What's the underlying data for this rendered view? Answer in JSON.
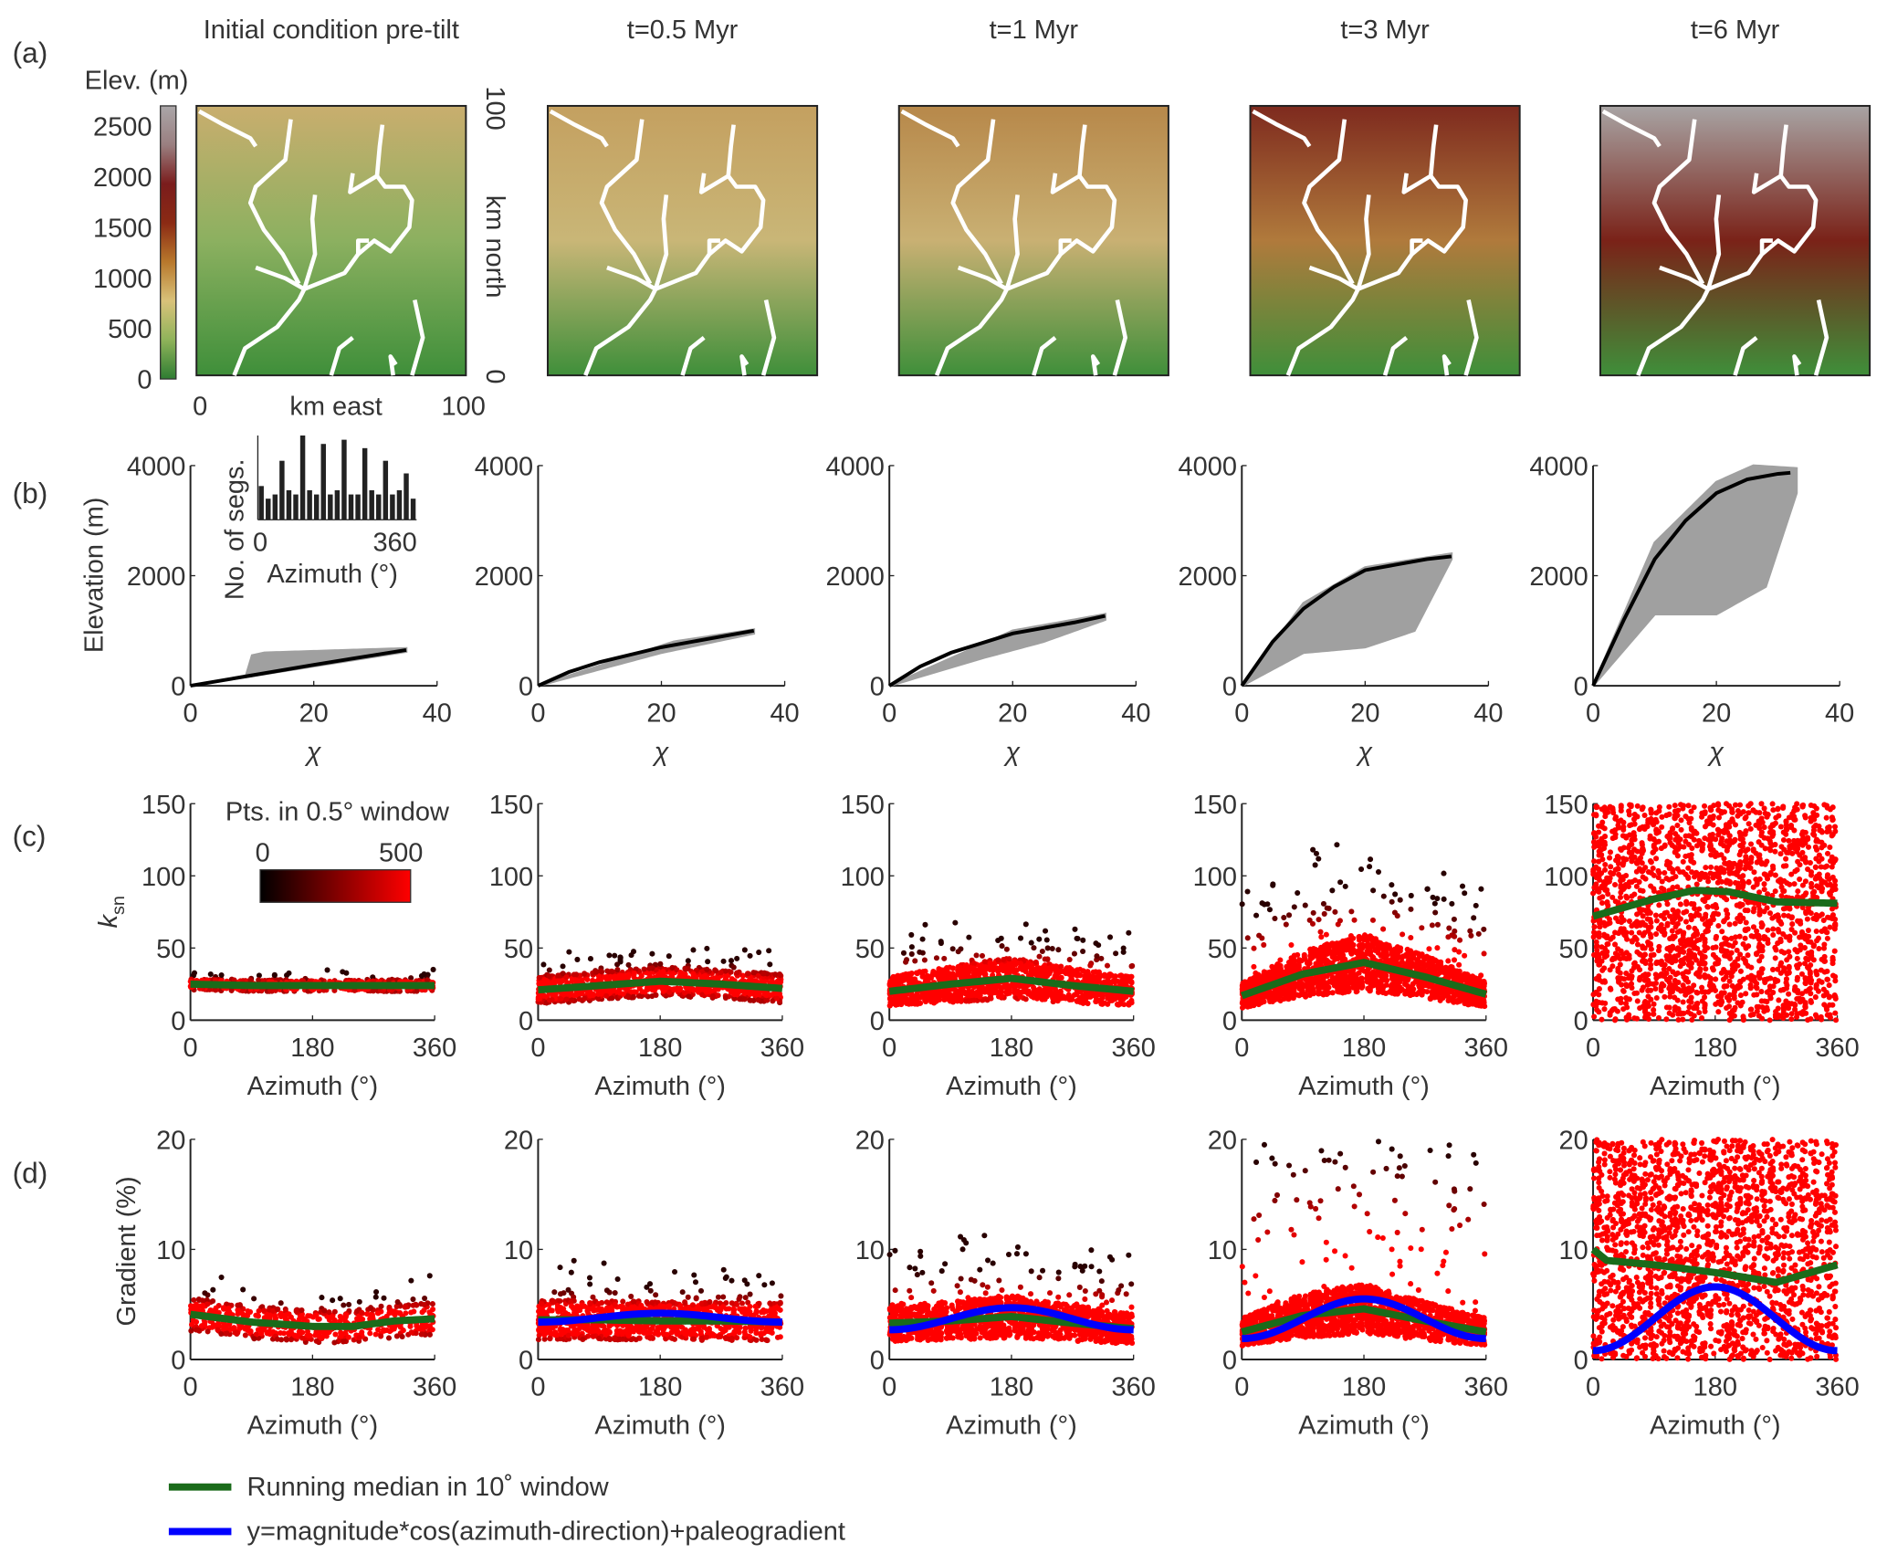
{
  "panel_labels": [
    "(a)",
    "(b)",
    "(c)",
    "(d)"
  ],
  "columns": [
    {
      "title": "Initial condition pre-tilt",
      "map_colors": [
        "#c9ae6e",
        "#8cb060",
        "#3f8f3a"
      ]
    },
    {
      "title": "t=0.5 Myr",
      "map_colors": [
        "#c4a060",
        "#c9b677",
        "#3f8f3a"
      ]
    },
    {
      "title": "t=1 Myr",
      "map_colors": [
        "#b7884a",
        "#c9b073",
        "#3f8f3a"
      ]
    },
    {
      "title": "t=3 Myr",
      "map_colors": [
        "#7e2a1e",
        "#b07a3c",
        "#3f8f3a"
      ]
    },
    {
      "title": "t=6 Myr",
      "map_colors": [
        "#a8a4a4",
        "#7a2218",
        "#3f8f3a"
      ]
    }
  ],
  "row_a": {
    "colorbar_title": "Elev. (m)",
    "colorbar_ticks": [
      "0",
      "500",
      "1000",
      "1500",
      "2000",
      "2500"
    ],
    "colorbar_range": [
      0,
      2700
    ],
    "colorbar_colors": [
      "#2e7d32",
      "#8fb35a",
      "#d9c27a",
      "#b8782c",
      "#8b2a14",
      "#7a1c1c",
      "#9a7f80",
      "#aaa6a8"
    ],
    "x_label": "km east",
    "x_ticks": [
      "0",
      "100"
    ],
    "y_label": "km north",
    "y_ticks": [
      "0",
      "100"
    ],
    "river_color": "#ffffff"
  },
  "row_b": {
    "y_label": "Elevation (m)",
    "x_label": "χ",
    "x_ticks": [
      "0",
      "20",
      "40"
    ],
    "y_ticks": [
      "0",
      "2000",
      "4000"
    ],
    "inset": {
      "y_label": "No. of segs.",
      "x_label": "Azimuth (°)",
      "x_ticks": [
        "0",
        "360"
      ]
    }
  },
  "row_c": {
    "y_label": "k",
    "y_label_sub": "sn",
    "x_label": "Azimuth (°)",
    "x_ticks": [
      "0",
      "180",
      "360"
    ],
    "y_ticks": [
      "0",
      "50",
      "100",
      "150"
    ],
    "density_colorbar": {
      "title": "Pts. in 0.5° window",
      "ticks": [
        "0",
        "500"
      ],
      "colors": [
        "#000000",
        "#ff0000"
      ]
    }
  },
  "row_d": {
    "y_label": "Gradient (%)",
    "x_label": "Azimuth (°)",
    "x_ticks": [
      "0",
      "180",
      "360"
    ],
    "y_ticks": [
      "0",
      "10",
      "20"
    ]
  },
  "legend": [
    {
      "label": "Running median in 10˚ window",
      "color": "#1a6b1a"
    },
    {
      "label": "y=magnitude*cos(azimuth-direction)+paleogradient",
      "color": "#0000ff"
    }
  ],
  "chart_data": [
    {
      "type": "line",
      "panel": "b",
      "xlabel": "χ",
      "ylabel": "Elevation (m)",
      "xlim": [
        0,
        40
      ],
      "ylim": [
        0,
        4000
      ],
      "series": [
        {
          "column": 0,
          "median": [
            [
              0,
              0
            ],
            [
              10,
              190
            ],
            [
              20,
              380
            ],
            [
              30,
              560
            ],
            [
              35,
              650
            ]
          ],
          "scatter_lower": [
            [
              0,
              0
            ],
            [
              35,
              620
            ]
          ],
          "scatter_upper": [
            [
              0,
              0
            ],
            [
              9,
              180
            ],
            [
              10,
              550
            ],
            [
              12,
              600
            ],
            [
              35,
              680
            ]
          ]
        },
        {
          "column": 1,
          "median": [
            [
              0,
              0
            ],
            [
              5,
              250
            ],
            [
              10,
              430
            ],
            [
              20,
              700
            ],
            [
              30,
              900
            ],
            [
              35,
              1000
            ]
          ],
          "scatter_lower": [
            [
              0,
              0
            ],
            [
              20,
              600
            ],
            [
              35,
              950
            ]
          ],
          "scatter_upper": [
            [
              0,
              0
            ],
            [
              22,
              800
            ],
            [
              35,
              1020
            ]
          ]
        },
        {
          "column": 2,
          "median": [
            [
              0,
              0
            ],
            [
              5,
              350
            ],
            [
              10,
              600
            ],
            [
              20,
              950
            ],
            [
              25,
              1050
            ],
            [
              30,
              1150
            ],
            [
              35,
              1270
            ]
          ],
          "scatter_lower": [
            [
              0,
              0
            ],
            [
              15,
              500
            ],
            [
              25,
              800
            ],
            [
              35,
              1200
            ]
          ],
          "scatter_upper": [
            [
              0,
              0
            ],
            [
              20,
              1000
            ],
            [
              35,
              1300
            ]
          ]
        },
        {
          "column": 3,
          "median": [
            [
              0,
              0
            ],
            [
              5,
              800
            ],
            [
              10,
              1400
            ],
            [
              15,
              1800
            ],
            [
              20,
              2100
            ],
            [
              25,
              2200
            ],
            [
              30,
              2300
            ],
            [
              34,
              2350
            ]
          ],
          "scatter_lower": [
            [
              0,
              0
            ],
            [
              10,
              600
            ],
            [
              20,
              700
            ],
            [
              28,
              1000
            ],
            [
              34,
              2300
            ]
          ],
          "scatter_upper": [
            [
              0,
              0
            ],
            [
              10,
              1500
            ],
            [
              20,
              2150
            ],
            [
              34,
              2400
            ]
          ]
        },
        {
          "column": 4,
          "median": [
            [
              0,
              0
            ],
            [
              5,
              1200
            ],
            [
              10,
              2300
            ],
            [
              15,
              3000
            ],
            [
              20,
              3500
            ],
            [
              25,
              3750
            ],
            [
              30,
              3850
            ],
            [
              32,
              3870
            ]
          ],
          "scatter_lower": [
            [
              0,
              0
            ],
            [
              10,
              1300
            ],
            [
              20,
              1300
            ],
            [
              28,
              1800
            ],
            [
              33,
              3500
            ]
          ],
          "scatter_upper": [
            [
              0,
              0
            ],
            [
              10,
              2600
            ],
            [
              20,
              3700
            ],
            [
              26,
              4000
            ],
            [
              33,
              3950
            ]
          ]
        }
      ]
    },
    {
      "type": "bar",
      "panel": "b-inset",
      "xlabel": "Azimuth (°)",
      "ylabel": "No. of segs.",
      "xlim": [
        0,
        360
      ],
      "values": [
        0.4,
        0.25,
        0.3,
        0.7,
        0.35,
        0.3,
        1.0,
        0.35,
        0.3,
        0.9,
        0.3,
        0.35,
        0.95,
        0.3,
        0.3,
        0.85,
        0.35,
        0.3,
        0.7,
        0.3,
        0.35,
        0.55,
        0.25
      ]
    },
    {
      "type": "scatter",
      "panel": "c",
      "xlabel": "Azimuth (°)",
      "ylabel": "ksn",
      "xlim": [
        0,
        360
      ],
      "ylim": [
        0,
        150
      ],
      "series": [
        {
          "column": 0,
          "running_median": [
            [
              0,
              25
            ],
            [
              90,
              24
            ],
            [
              180,
              24
            ],
            [
              270,
              24
            ],
            [
              360,
              24
            ]
          ],
          "spread": 8
        },
        {
          "column": 1,
          "running_median": [
            [
              0,
              21
            ],
            [
              90,
              24
            ],
            [
              180,
              27
            ],
            [
              270,
              25
            ],
            [
              360,
              22
            ]
          ],
          "spread": 20
        },
        {
          "column": 2,
          "running_median": [
            [
              0,
              20
            ],
            [
              90,
              25
            ],
            [
              180,
              29
            ],
            [
              270,
              24
            ],
            [
              360,
              20
            ]
          ],
          "spread": 35
        },
        {
          "column": 3,
          "running_median": [
            [
              0,
              17
            ],
            [
              90,
              32
            ],
            [
              180,
              40
            ],
            [
              270,
              30
            ],
            [
              360,
              18
            ]
          ],
          "spread": 70
        },
        {
          "column": 4,
          "running_median": [
            [
              0,
              72
            ],
            [
              90,
              84
            ],
            [
              150,
              90
            ],
            [
              200,
              89
            ],
            [
              270,
              82
            ],
            [
              360,
              81
            ]
          ],
          "spread": 150
        }
      ]
    },
    {
      "type": "scatter",
      "panel": "d",
      "xlabel": "Azimuth (°)",
      "ylabel": "Gradient (%)",
      "xlim": [
        0,
        360
      ],
      "ylim": [
        0,
        20
      ],
      "series": [
        {
          "column": 0,
          "running_median": [
            [
              0,
              4.1
            ],
            [
              90,
              3.4
            ],
            [
              180,
              3.0
            ],
            [
              240,
              3.0
            ],
            [
              300,
              3.5
            ],
            [
              360,
              3.7
            ]
          ],
          "spread": 3
        },
        {
          "column": 1,
          "running_median": [
            [
              0,
              3.6
            ],
            [
              90,
              3.6
            ],
            [
              180,
              3.5
            ],
            [
              270,
              3.5
            ],
            [
              360,
              3.4
            ]
          ],
          "cos_fit": {
            "magnitude": 0.4,
            "direction": 180,
            "paleogradient": 3.8
          },
          "spread": 4
        },
        {
          "column": 2,
          "running_median": [
            [
              0,
              3.3
            ],
            [
              90,
              3.5
            ],
            [
              180,
              3.9
            ],
            [
              270,
              3.3
            ],
            [
              360,
              2.8
            ]
          ],
          "cos_fit": {
            "magnitude": 1.0,
            "direction": 180,
            "paleogradient": 3.7
          },
          "spread": 6
        },
        {
          "column": 3,
          "running_median": [
            [
              0,
              2.5
            ],
            [
              90,
              4.0
            ],
            [
              180,
              4.6
            ],
            [
              270,
              3.5
            ],
            [
              360,
              2.5
            ]
          ],
          "cos_fit": {
            "magnitude": 1.8,
            "direction": 180,
            "paleogradient": 3.7
          },
          "spread": 20
        },
        {
          "column": 4,
          "running_median": [
            [
              0,
              10
            ],
            [
              20,
              9
            ],
            [
              90,
              8.6
            ],
            [
              180,
              7.9
            ],
            [
              270,
              7.0
            ],
            [
              360,
              8.6
            ]
          ],
          "cos_fit": {
            "magnitude": 2.9,
            "direction": 180,
            "paleogradient": 3.7
          },
          "spread": 20
        }
      ]
    }
  ]
}
